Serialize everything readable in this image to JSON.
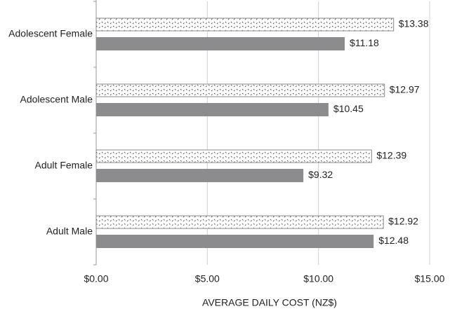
{
  "chart_data": {
    "type": "bar",
    "orientation": "horizontal",
    "x_label": "AVERAGE DAILY COST (NZ$)",
    "categories": [
      "Adolescent Female",
      "Adolescent Male",
      "Adult Female",
      "Adult Male"
    ],
    "series": [
      {
        "color": "#ffffff",
        "fill_pattern": "dots",
        "values": [
          13.38,
          12.97,
          12.39,
          12.92
        ],
        "value_labels": [
          "$13.38",
          "$12.97",
          "$12.39",
          "$12.92"
        ]
      },
      {
        "color": "#8c8c8e",
        "values": [
          11.18,
          10.45,
          9.32,
          12.48
        ],
        "value_labels": [
          "$11.18",
          "$10.45",
          "$9.32",
          "$12.48"
        ]
      }
    ],
    "xlim": [
      0,
      15
    ],
    "xticks": [
      {
        "value": 0,
        "label": "$0.00"
      },
      {
        "value": 5,
        "label": "$5.00"
      },
      {
        "value": 10,
        "label": "$10.00"
      },
      {
        "value": 15,
        "label": "$15.00"
      }
    ],
    "grid": true
  }
}
